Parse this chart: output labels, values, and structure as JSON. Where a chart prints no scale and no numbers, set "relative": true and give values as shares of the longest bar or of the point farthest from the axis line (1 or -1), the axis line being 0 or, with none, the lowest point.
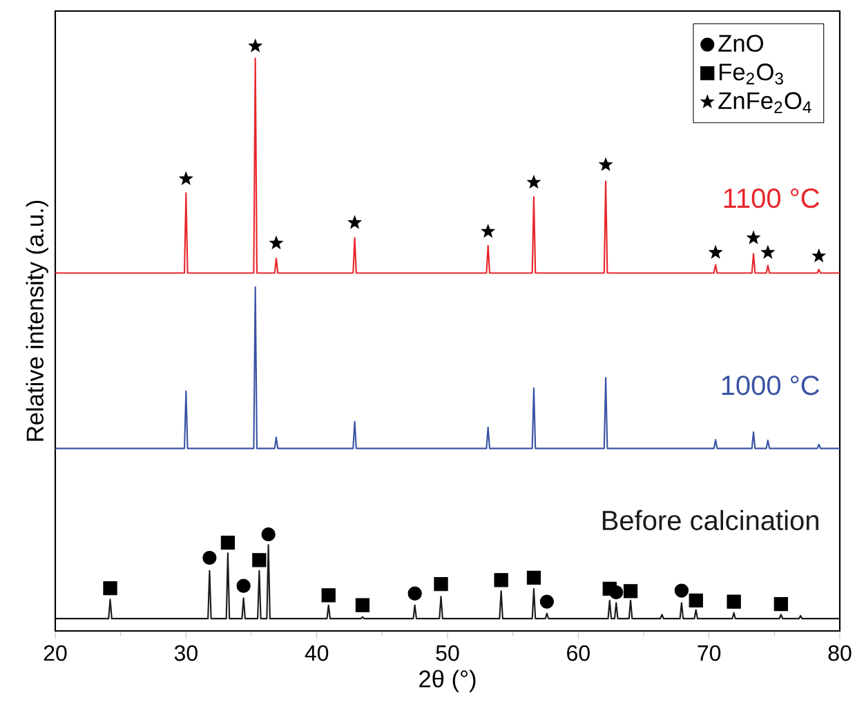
{
  "chart_data": {
    "type": "line",
    "relative": true,
    "xlabel": "2θ (°)",
    "ylabel": "Relative intensity (a.u.)",
    "xlim": [
      20,
      80
    ],
    "xticks": [
      20,
      30,
      40,
      50,
      60,
      70,
      80
    ],
    "legend": "top right",
    "marker": "none",
    "series": [
      {
        "name": "1100 °C",
        "color": "#e8262b",
        "x": [
          20,
          29.88,
          30.0,
          30.12,
          35.18,
          35.3,
          35.42,
          36.78,
          36.9,
          37.02,
          42.78,
          42.9,
          43.02,
          52.98,
          53.1,
          53.22,
          56.48,
          56.6,
          56.72,
          61.98,
          62.1,
          62.22,
          70.38,
          70.5,
          70.62,
          73.28,
          73.4,
          73.52,
          74.38,
          74.5,
          74.62,
          78.28,
          78.4,
          78.52,
          80
        ],
        "values": [
          0.612,
          0.612,
          0.749,
          0.612,
          0.612,
          0.979,
          0.612,
          0.612,
          0.637,
          0.612,
          0.612,
          0.672,
          0.612,
          0.612,
          0.659,
          0.612,
          0.612,
          0.742,
          0.612,
          0.612,
          0.769,
          0.612,
          0.612,
          0.626,
          0.612,
          0.612,
          0.645,
          0.612,
          0.612,
          0.625,
          0.612,
          0.612,
          0.618,
          0.612,
          0.612
        ]
      },
      {
        "name": "1000 °C",
        "color": "#3a53a4",
        "x": [
          20,
          29.88,
          30.0,
          30.12,
          35.18,
          35.3,
          35.42,
          36.78,
          36.9,
          37.02,
          42.78,
          42.9,
          43.02,
          52.98,
          53.1,
          53.22,
          56.48,
          56.6,
          56.72,
          61.98,
          62.1,
          62.22,
          70.38,
          70.5,
          70.62,
          73.28,
          73.4,
          73.52,
          74.38,
          74.5,
          74.62,
          78.28,
          78.4,
          78.52,
          80
        ],
        "values": [
          0.312,
          0.312,
          0.41,
          0.312,
          0.312,
          0.588,
          0.312,
          0.312,
          0.331,
          0.312,
          0.312,
          0.358,
          0.312,
          0.312,
          0.348,
          0.312,
          0.312,
          0.415,
          0.312,
          0.312,
          0.433,
          0.312,
          0.312,
          0.327,
          0.312,
          0.312,
          0.34,
          0.312,
          0.312,
          0.326,
          0.312,
          0.312,
          0.319,
          0.312,
          0.312
        ]
      },
      {
        "name": "Before calcination",
        "color": "#1a1a1a",
        "x": [
          20,
          24.08,
          24.2,
          24.32,
          31.68,
          31.8,
          31.92,
          33.08,
          33.2,
          33.32,
          34.28,
          34.4,
          34.52,
          35.48,
          35.6,
          35.72,
          36.18,
          36.3,
          36.42,
          40.78,
          40.9,
          41.02,
          43.38,
          43.5,
          43.62,
          47.38,
          47.5,
          47.62,
          49.38,
          49.5,
          49.62,
          53.98,
          54.1,
          54.22,
          56.48,
          56.6,
          56.72,
          57.48,
          57.6,
          57.72,
          62.28,
          62.4,
          62.52,
          62.78,
          62.9,
          63.02,
          63.88,
          64.0,
          64.12,
          66.28,
          66.4,
          66.52,
          67.78,
          67.9,
          68.02,
          68.88,
          69.0,
          69.12,
          71.78,
          71.9,
          72.02,
          75.38,
          75.5,
          75.62,
          76.88,
          77.0,
          77.12,
          80
        ],
        "values": [
          0.021,
          0.021,
          0.054,
          0.021,
          0.021,
          0.103,
          0.021,
          0.021,
          0.133,
          0.021,
          0.021,
          0.056,
          0.021,
          0.021,
          0.103,
          0.021,
          0.021,
          0.147,
          0.021,
          0.021,
          0.044,
          0.021,
          0.021,
          0.024,
          0.021,
          0.021,
          0.044,
          0.021,
          0.021,
          0.059,
          0.021,
          0.021,
          0.068,
          0.021,
          0.021,
          0.072,
          0.021,
          0.021,
          0.03,
          0.021,
          0.021,
          0.052,
          0.021,
          0.021,
          0.048,
          0.021,
          0.021,
          0.052,
          0.021,
          0.021,
          0.028,
          0.021,
          0.021,
          0.048,
          0.021,
          0.021,
          0.036,
          0.021,
          0.021,
          0.031,
          0.021,
          0.021,
          0.028,
          0.021,
          0.021,
          0.026,
          0.021,
          0.021
        ]
      },
      {
        "name": "ZnO",
        "type": "scatter",
        "marker": "circle",
        "color": "#000000",
        "x": [
          31.8,
          34.4,
          36.3,
          47.5,
          57.6,
          62.9,
          67.9
        ],
        "values": [
          0.125,
          0.077,
          0.165,
          0.064,
          0.05,
          0.066,
          0.069
        ]
      },
      {
        "name": "Fe$_{2}$O$_{3}$",
        "type": "scatter",
        "marker": "square",
        "color": "#000000",
        "x": [
          24.2,
          33.2,
          35.6,
          40.9,
          43.5,
          49.5,
          54.1,
          56.6,
          62.4,
          64.0,
          69.0,
          71.9,
          75.5
        ],
        "values": [
          0.073,
          0.151,
          0.121,
          0.061,
          0.044,
          0.08,
          0.087,
          0.091,
          0.072,
          0.068,
          0.052,
          0.05,
          0.046
        ]
      },
      {
        "name": "ZnFe$_{2}$O$_{4}$",
        "type": "scatter",
        "marker": "star",
        "color": "#000000",
        "x": [
          30.0,
          35.3,
          36.9,
          42.9,
          53.1,
          56.6,
          62.1,
          70.5,
          73.4,
          74.5,
          78.4
        ],
        "values": [
          0.773,
          1.0,
          0.663,
          0.698,
          0.683,
          0.767,
          0.797,
          0.647,
          0.672,
          0.647,
          0.641
        ]
      }
    ]
  }
}
